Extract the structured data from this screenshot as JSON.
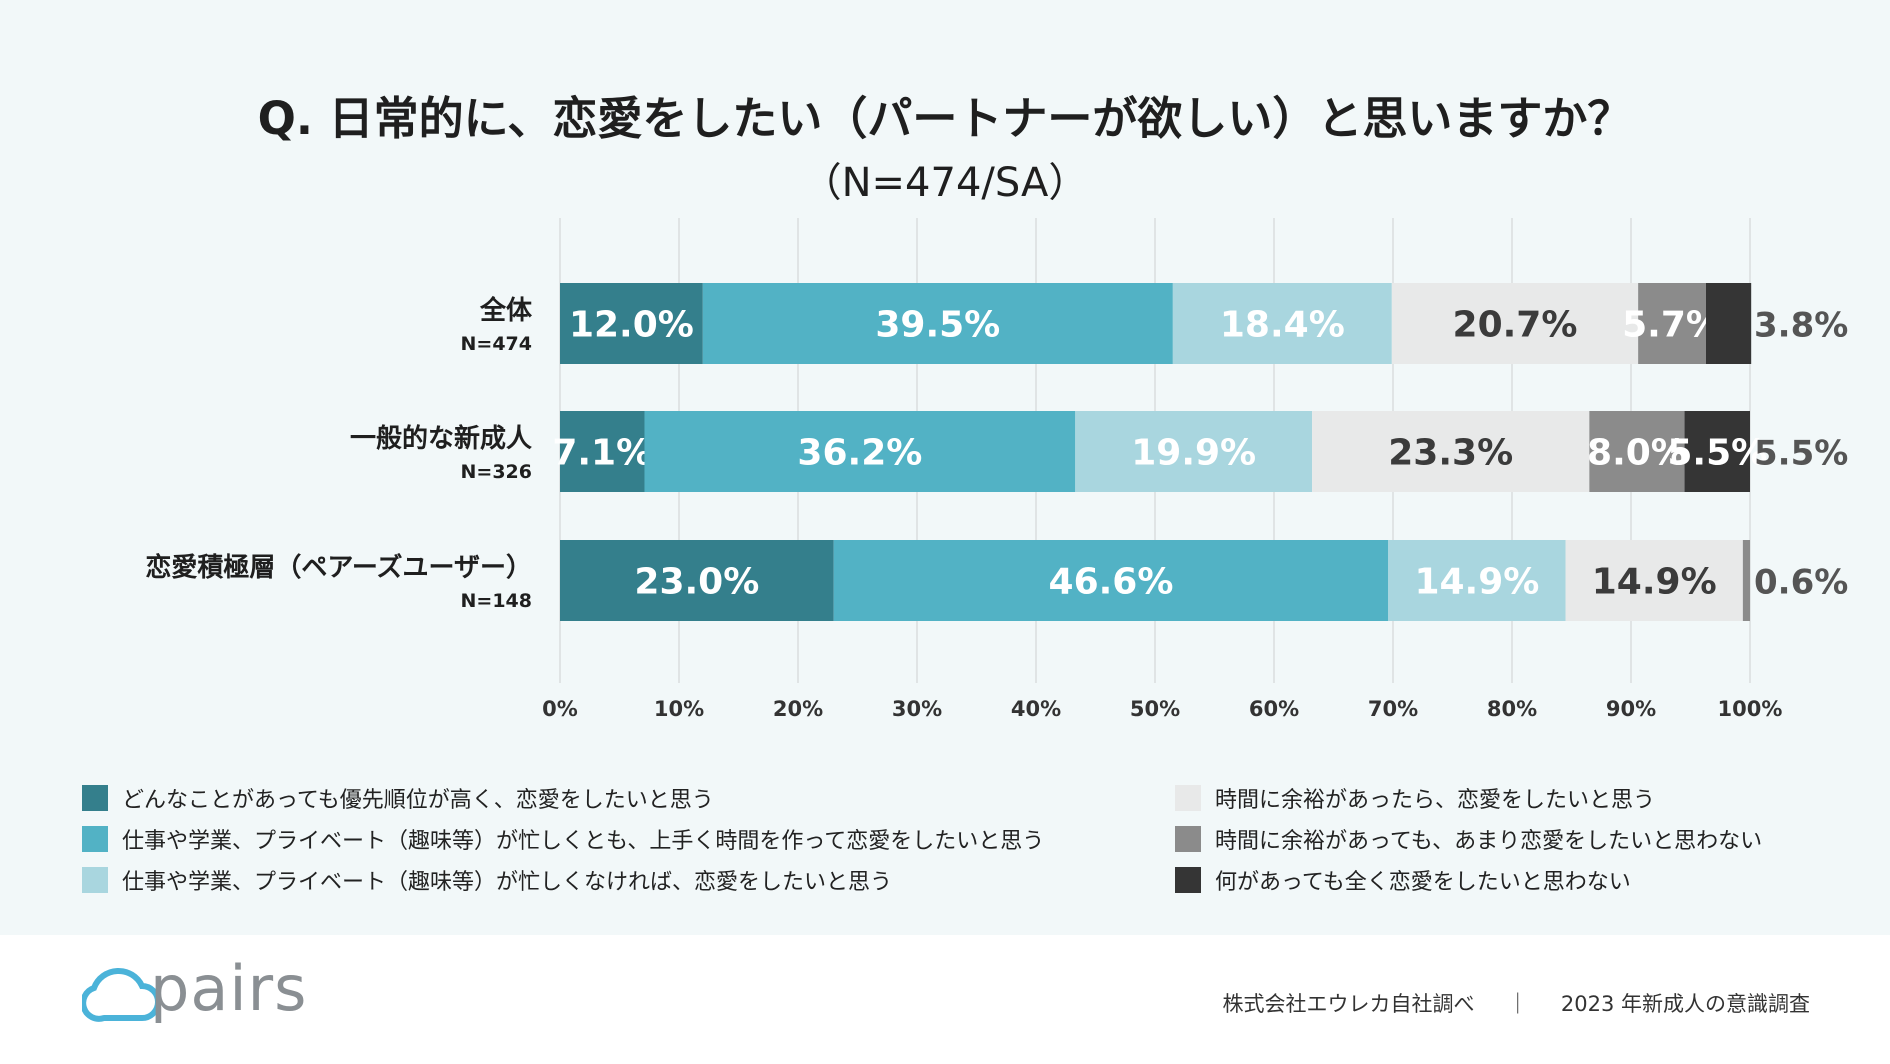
{
  "chart_data": {
    "type": "bar",
    "orientation": "horizontal",
    "stacked": true,
    "title": "Q. 日常的に、恋愛をしたい（パートナーが欲しい）と思いますか？",
    "subtitle": "（N=474/SA）",
    "categories": [
      {
        "label": "全体",
        "n": "N=474"
      },
      {
        "label": "一般的な新成人",
        "n": "N=326"
      },
      {
        "label": "恋愛積極層（ペアーズユーザー）",
        "n": "N=148"
      }
    ],
    "series": [
      {
        "name": "どんなことがあっても優先順位が高く、恋愛をしたいと思う",
        "color": "#347f8c",
        "label_color": "#ffffff",
        "values": [
          12.0,
          7.1,
          23.0
        ],
        "labels": [
          "12.0%",
          "7.1%",
          "23.0%"
        ]
      },
      {
        "name": "仕事や学業、プライベート（趣味等）が忙しくとも、上手く時間を作って恋愛をしたいと思う",
        "color": "#52b2c5",
        "label_color": "#ffffff",
        "values": [
          39.5,
          36.2,
          46.6
        ],
        "labels": [
          "39.5%",
          "36.2%",
          "46.6%"
        ]
      },
      {
        "name": "仕事や学業、プライベート（趣味等）が忙しくなければ、恋愛をしたいと思う",
        "color": "#a9d6df",
        "label_color": "#ffffff",
        "values": [
          18.4,
          19.9,
          14.9
        ],
        "labels": [
          "18.4%",
          "19.9%",
          "14.9%"
        ]
      },
      {
        "name": "時間に余裕があったら、恋愛をしたいと思う",
        "color": "#e8e9e9",
        "label_color": "#3b3b3b",
        "values": [
          20.7,
          23.3,
          14.9
        ],
        "labels": [
          "20.7%",
          "23.3%",
          "14.9%"
        ]
      },
      {
        "name": "時間に余裕があっても、あまり恋愛をしたいと思わない",
        "color": "#8b8b8b",
        "label_color": "#ffffff",
        "values": [
          5.7,
          8.0,
          0.6
        ],
        "labels": [
          "5.7%",
          "8.0%",
          "0.6%"
        ]
      },
      {
        "name": "何があっても全く恋愛をしたいと思わない",
        "color": "#353535",
        "label_color": "#ffffff",
        "values": [
          3.8,
          5.5,
          0.0
        ],
        "labels": [
          "3.8%",
          "5.5%",
          ""
        ]
      }
    ],
    "xlim": [
      0,
      100
    ],
    "xticks": [
      "0%",
      "10%",
      "20%",
      "30%",
      "40%",
      "50%",
      "60%",
      "70%",
      "80%",
      "90%",
      "100%"
    ],
    "grid": true,
    "legend_position": "bottom"
  },
  "outside_labels": {
    "color": "#555555",
    "rows": [
      "3.8%",
      "5.5%",
      "0.6%"
    ]
  },
  "footer": {
    "logo_text": "pairs",
    "source": "株式会社エウレカ自社調べ",
    "separator": "｜",
    "survey": "2023 年新成人の意識調査"
  }
}
